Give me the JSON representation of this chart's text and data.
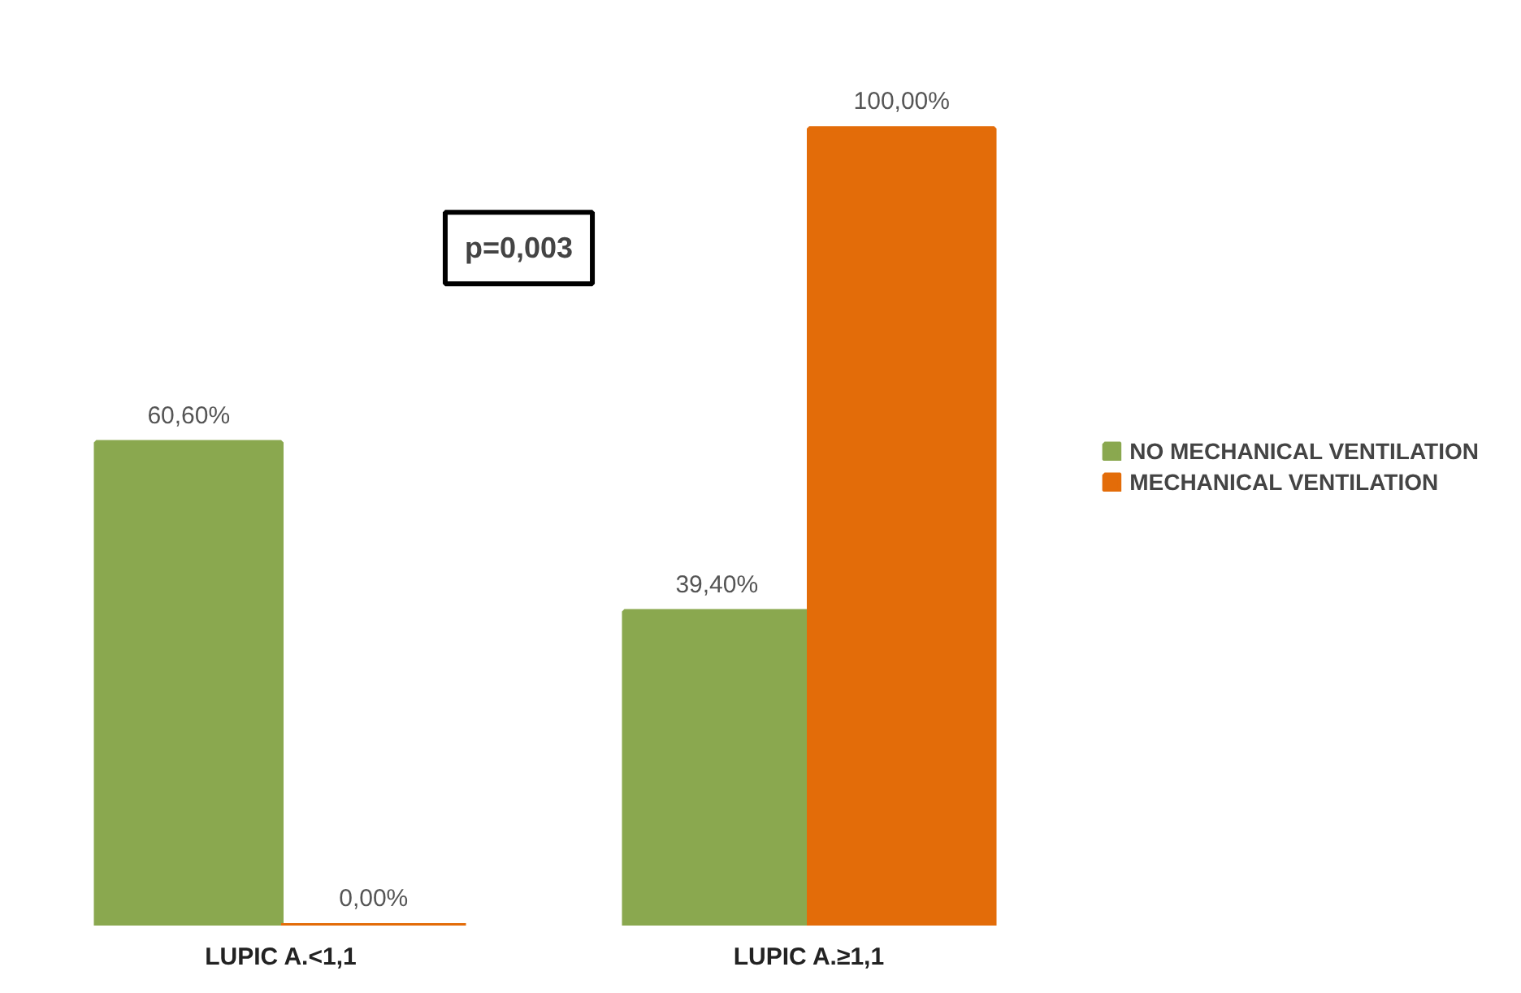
{
  "chart_data": {
    "type": "bar",
    "categories": [
      "LUPIC A.<1,1",
      "LUPIC A.≥1,1"
    ],
    "series": [
      {
        "name": "NO MECHANICAL VENTILATION",
        "color": "#8aa84f",
        "values": [
          60.6,
          39.4
        ],
        "value_labels": [
          "60,60%",
          "39,40%"
        ]
      },
      {
        "name": "MECHANICAL VENTILATION",
        "color": "#e36c09",
        "values": [
          0,
          100
        ],
        "value_labels": [
          "0,00%",
          "100,00%"
        ]
      }
    ],
    "annotations": [
      "p=0,003"
    ],
    "legend": "right",
    "tick_labels": "x",
    "grid": false
  }
}
